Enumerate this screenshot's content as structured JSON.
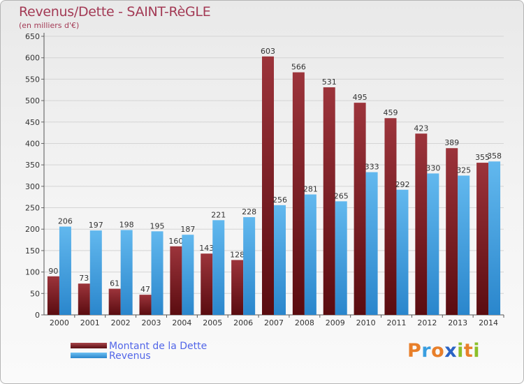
{
  "chart_data": {
    "type": "bar",
    "title": "Revenus/Dette - SAINT-RèGLE",
    "subtitle": "(en milliers d'€)",
    "categories": [
      "2000",
      "2001",
      "2002",
      "2003",
      "2004",
      "2005",
      "2006",
      "2007",
      "2008",
      "2009",
      "2010",
      "2011",
      "2012",
      "2013",
      "2014"
    ],
    "series": [
      {
        "name": "Montant de la Dette",
        "color": "#7a1c22",
        "values": [
          90,
          73,
          61,
          47,
          160,
          143,
          128,
          603,
          566,
          531,
          495,
          459,
          423,
          389,
          355
        ]
      },
      {
        "name": "Revenus",
        "color": "#3a9ee0",
        "values": [
          206,
          197,
          198,
          195,
          187,
          221,
          228,
          256,
          281,
          265,
          333,
          292,
          330,
          325,
          358
        ]
      }
    ],
    "ylim": [
      0,
      650
    ],
    "yticks": [
      "0",
      "50",
      "100",
      "150",
      "200",
      "250",
      "300",
      "350",
      "400",
      "450",
      "500",
      "550",
      "600",
      "650"
    ],
    "grid": true,
    "xlabel": "",
    "ylabel": ""
  },
  "logo": {
    "letters": [
      "P",
      "r",
      "o",
      "x",
      "i",
      "t",
      "i"
    ],
    "colors": [
      "#e87f2a",
      "#3a9ee0",
      "#e87f2a",
      "#2a63c4",
      "#8bbf2a",
      "#e87f2a",
      "#8bbf2a"
    ]
  }
}
